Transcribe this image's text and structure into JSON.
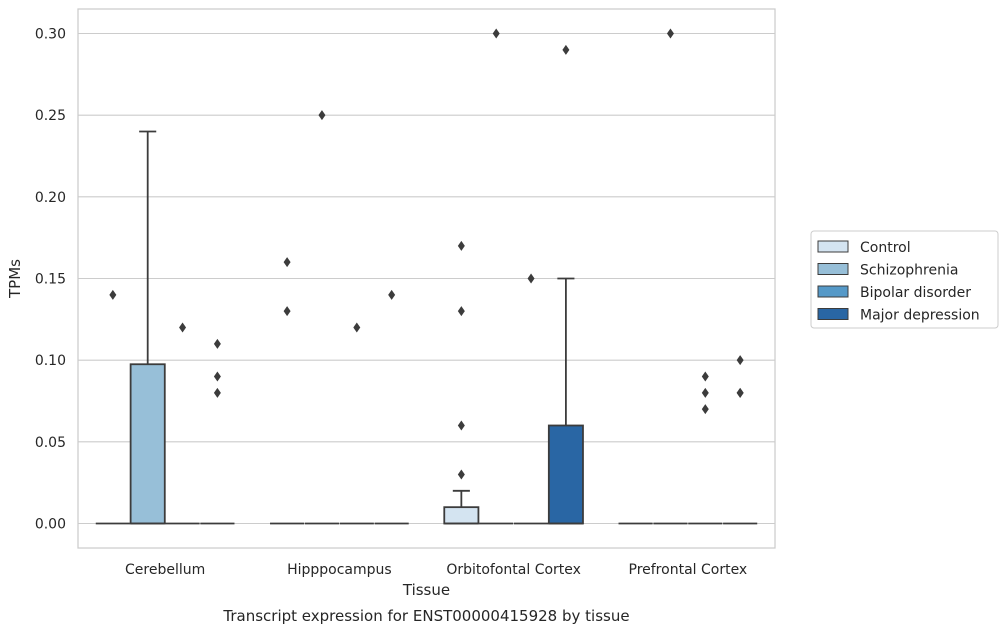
{
  "chart_data": {
    "type": "box",
    "title": "",
    "caption": "Transcript expression for ENST00000415928 by tissue",
    "xlabel": "Tissue",
    "ylabel": "TPMs",
    "ylim": [
      -0.015,
      0.315
    ],
    "yticks": [
      "0.00",
      "0.05",
      "0.10",
      "0.15",
      "0.20",
      "0.25",
      "0.30"
    ],
    "categories": [
      "Cerebellum",
      "Hipppocampus",
      "Orbitofontal Cortex",
      "Prefrontal Cortex"
    ],
    "grid": "horizontal",
    "legend_position": "right",
    "series": [
      {
        "name": "Control",
        "color": "#d4e4f1",
        "boxes": [
          {
            "q1": 0,
            "median": 0,
            "q3": 0,
            "whisker_low": 0,
            "whisker_high": 0,
            "outliers": []
          },
          {
            "q1": 0,
            "median": 0,
            "q3": 0,
            "whisker_low": 0,
            "whisker_high": 0,
            "outliers": [
              0.13,
              0.16
            ]
          },
          {
            "q1": 0,
            "median": 0,
            "q3": 0.01,
            "whisker_low": 0,
            "whisker_high": 0.02,
            "outliers": [
              0.03
            ]
          },
          {
            "q1": 0,
            "median": 0,
            "q3": 0,
            "whisker_low": 0,
            "whisker_high": 0,
            "outliers": []
          }
        ]
      },
      {
        "name": "Schizophrenia",
        "color": "#97bfd8",
        "boxes": [
          {
            "q1": 0,
            "median": 0,
            "q3": 0.0975,
            "whisker_low": 0,
            "whisker_high": 0.24,
            "outliers": []
          },
          {
            "q1": 0,
            "median": 0,
            "q3": 0,
            "whisker_low": 0,
            "whisker_high": 0,
            "outliers": [
              0.25
            ]
          },
          {
            "q1": 0,
            "median": 0,
            "q3": 0,
            "whisker_low": 0,
            "whisker_high": 0,
            "outliers": [
              0.3
            ]
          },
          {
            "q1": 0,
            "median": 0,
            "q3": 0,
            "whisker_low": 0,
            "whisker_high": 0,
            "outliers": [
              0.3
            ]
          }
        ]
      },
      {
        "name": "Bipolar disorder",
        "color": "#5599c8",
        "boxes": [
          {
            "q1": 0,
            "median": 0,
            "q3": 0,
            "whisker_low": 0,
            "whisker_high": 0,
            "outliers": [
              0.12
            ]
          },
          {
            "q1": 0,
            "median": 0,
            "q3": 0,
            "whisker_low": 0,
            "whisker_high": 0,
            "outliers": [
              0.12
            ]
          },
          {
            "q1": 0,
            "median": 0,
            "q3": 0,
            "whisker_low": 0,
            "whisker_high": 0,
            "outliers": [
              0.15
            ]
          },
          {
            "q1": 0,
            "median": 0,
            "q3": 0,
            "whisker_low": 0,
            "whisker_high": 0,
            "outliers": [
              0.07,
              0.09
            ]
          }
        ]
      },
      {
        "name": "Major depression",
        "color": "#2966a4",
        "boxes": [
          {
            "q1": 0,
            "median": 0,
            "q3": 0,
            "whisker_low": 0,
            "whisker_high": 0,
            "outliers": [
              0.08,
              0.09,
              0.11
            ]
          },
          {
            "q1": 0,
            "median": 0,
            "q3": 0,
            "whisker_low": 0,
            "whisker_high": 0,
            "outliers": [
              0.14
            ]
          },
          {
            "q1": 0,
            "median": 0,
            "q3": 0.06,
            "whisker_low": 0,
            "whisker_high": 0.15,
            "outliers": [
              0.29
            ]
          },
          {
            "q1": 0,
            "median": 0,
            "q3": 0,
            "whisker_low": 0,
            "whisker_high": 0,
            "outliers": [
              0.08,
              0.08,
              0.1
            ]
          }
        ]
      }
    ],
    "extra_outliers": [
      {
        "category": 0,
        "series": 0,
        "values": [
          0.14
        ]
      },
      {
        "category": 2,
        "series": 0,
        "values": [
          0.06,
          0.13,
          0.17
        ]
      },
      {
        "category": 3,
        "series": 2,
        "values": [
          0.08
        ]
      }
    ]
  }
}
